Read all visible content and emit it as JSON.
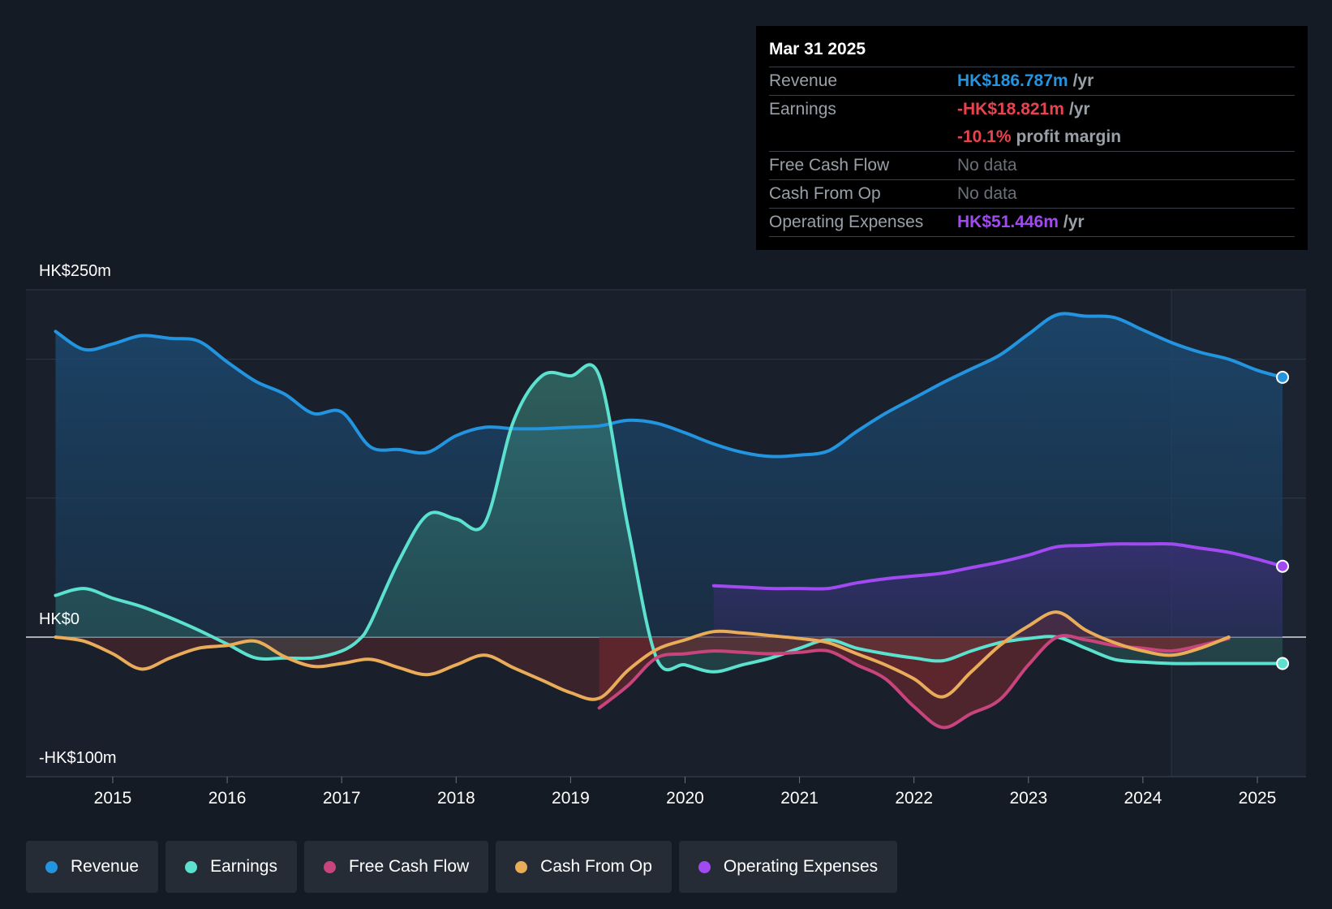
{
  "colors": {
    "revenue": "#2394df",
    "earnings": "#5ce1cf",
    "fcf": "#c8447c",
    "cfo": "#e9ad5a",
    "opex": "#a24af1",
    "negative_fill": "#7a2a2e"
  },
  "tooltip": {
    "date": "Mar 31 2025",
    "rows": [
      {
        "label": "Revenue",
        "value": "HK$186.787m",
        "unit": "/yr",
        "color": "#2394df"
      },
      {
        "label": "Earnings",
        "value": "-HK$18.821m",
        "unit": "/yr",
        "color": "#e8434f"
      },
      {
        "label": "",
        "value": "-10.1%",
        "unit": "profit margin",
        "color": "#e8434f"
      },
      {
        "label": "Free Cash Flow",
        "value": "No data",
        "unit": "",
        "color": "nodata"
      },
      {
        "label": "Cash From Op",
        "value": "No data",
        "unit": "",
        "color": "nodata"
      },
      {
        "label": "Operating Expenses",
        "value": "HK$51.446m",
        "unit": "/yr",
        "color": "#a24af1"
      }
    ]
  },
  "legend": [
    {
      "label": "Revenue",
      "color": "#2394df"
    },
    {
      "label": "Earnings",
      "color": "#5ce1cf"
    },
    {
      "label": "Free Cash Flow",
      "color": "#c8447c"
    },
    {
      "label": "Cash From Op",
      "color": "#e9ad5a"
    },
    {
      "label": "Operating Expenses",
      "color": "#a24af1"
    }
  ],
  "chart_data": {
    "type": "area",
    "title": "",
    "y_axis_labels": {
      "top": "HK$250m",
      "zero": "HK$0",
      "bottom": "-HK$100m"
    },
    "ylim": [
      -100,
      250
    ],
    "xlim": [
      2014,
      2025.22
    ],
    "x_ticks": [
      2015,
      2016,
      2017,
      2018,
      2019,
      2020,
      2021,
      2022,
      2023,
      2024,
      2025
    ],
    "forecast_start": 2024.25,
    "series": [
      {
        "name": "Revenue",
        "key": "revenue",
        "x": [
          2014.5,
          2014.75,
          2015.0,
          2015.25,
          2015.5,
          2015.75,
          2016.0,
          2016.25,
          2016.5,
          2016.75,
          2017.0,
          2017.25,
          2017.5,
          2017.75,
          2018.0,
          2018.25,
          2018.5,
          2018.75,
          2019.0,
          2019.25,
          2019.5,
          2019.75,
          2020.0,
          2020.25,
          2020.5,
          2020.75,
          2021.0,
          2021.25,
          2021.5,
          2021.75,
          2022.0,
          2022.25,
          2022.5,
          2022.75,
          2023.0,
          2023.25,
          2023.5,
          2023.75,
          2024.0,
          2024.25,
          2024.5,
          2024.75,
          2025.0,
          2025.22
        ],
        "values": [
          220,
          207,
          211,
          217,
          215,
          213,
          198,
          184,
          175,
          161,
          162,
          137,
          135,
          133,
          145,
          151,
          150,
          150,
          151,
          152,
          156,
          154,
          147,
          139,
          133,
          130,
          131,
          134,
          148,
          161,
          172,
          183,
          193,
          203,
          218,
          232,
          231,
          230,
          221,
          212,
          205,
          200,
          192,
          187
        ]
      },
      {
        "name": "Earnings",
        "key": "earnings",
        "x": [
          2014.5,
          2014.75,
          2015.0,
          2015.25,
          2015.5,
          2015.75,
          2016.0,
          2016.25,
          2016.5,
          2016.75,
          2017.0,
          2017.15,
          2017.25,
          2017.5,
          2017.75,
          2018.0,
          2018.25,
          2018.5,
          2018.75,
          2019.0,
          2019.25,
          2019.5,
          2019.75,
          2020.0,
          2020.25,
          2020.5,
          2020.75,
          2021.0,
          2021.25,
          2021.5,
          2021.75,
          2022.0,
          2022.25,
          2022.5,
          2022.75,
          2023.0,
          2023.25,
          2023.5,
          2023.75,
          2024.0,
          2024.25,
          2024.5,
          2024.75,
          2025.0,
          2025.22
        ],
        "values": [
          30,
          35,
          28,
          22,
          14,
          5,
          -5,
          -15,
          -15,
          -15,
          -10,
          -2,
          10,
          55,
          88,
          85,
          82,
          155,
          188,
          188,
          188,
          80,
          -15,
          -20,
          -25,
          -20,
          -15,
          -8,
          -2,
          -8,
          -12,
          -15,
          -17,
          -10,
          -4,
          -1,
          0,
          -8,
          -16,
          -18,
          -19,
          -19,
          -19,
          -19,
          -19
        ]
      },
      {
        "name": "Free Cash Flow",
        "key": "fcf",
        "x": [
          2019.25,
          2019.5,
          2019.75,
          2020.0,
          2020.25,
          2020.5,
          2020.75,
          2021.0,
          2021.25,
          2021.5,
          2021.75,
          2022.0,
          2022.25,
          2022.5,
          2022.75,
          2023.0,
          2023.25,
          2023.5,
          2023.75,
          2024.0,
          2024.25,
          2024.5,
          2024.75
        ],
        "values": [
          -51,
          -35,
          -15,
          -12,
          -10,
          -11,
          -12,
          -11,
          -10,
          -20,
          -30,
          -50,
          -65,
          -55,
          -45,
          -20,
          0,
          -2,
          -6,
          -8,
          -10,
          -6,
          -1
        ]
      },
      {
        "name": "Cash From Op",
        "key": "cfo",
        "x": [
          2014.5,
          2014.75,
          2015.0,
          2015.25,
          2015.5,
          2015.75,
          2016.0,
          2016.25,
          2016.5,
          2016.75,
          2017.0,
          2017.25,
          2017.5,
          2017.75,
          2018.0,
          2018.25,
          2018.5,
          2018.75,
          2019.0,
          2019.25,
          2019.5,
          2019.75,
          2020.0,
          2020.25,
          2020.5,
          2020.75,
          2021.0,
          2021.25,
          2021.5,
          2021.75,
          2022.0,
          2022.25,
          2022.5,
          2022.75,
          2023.0,
          2023.25,
          2023.5,
          2023.75,
          2024.0,
          2024.25,
          2024.5,
          2024.75
        ],
        "values": [
          0,
          -3,
          -12,
          -23,
          -15,
          -8,
          -6,
          -3,
          -14,
          -21,
          -19,
          -16,
          -22,
          -27,
          -20,
          -13,
          -22,
          -31,
          -40,
          -44,
          -24,
          -9,
          -2,
          4,
          3,
          1,
          -1,
          -4,
          -12,
          -20,
          -30,
          -43,
          -25,
          -6,
          8,
          18,
          5,
          -4,
          -10,
          -13,
          -8,
          0
        ]
      },
      {
        "name": "Operating Expenses",
        "key": "opex",
        "x": [
          2020.25,
          2020.5,
          2020.75,
          2021.0,
          2021.25,
          2021.5,
          2021.75,
          2022.0,
          2022.25,
          2022.5,
          2022.75,
          2023.0,
          2023.25,
          2023.5,
          2023.75,
          2024.0,
          2024.25,
          2024.5,
          2024.75,
          2025.0,
          2025.22
        ],
        "values": [
          37,
          36,
          35,
          35,
          35,
          39,
          42,
          44,
          46,
          50,
          54,
          59,
          65,
          66,
          67,
          67,
          67,
          64,
          61,
          56,
          51
        ]
      }
    ]
  }
}
